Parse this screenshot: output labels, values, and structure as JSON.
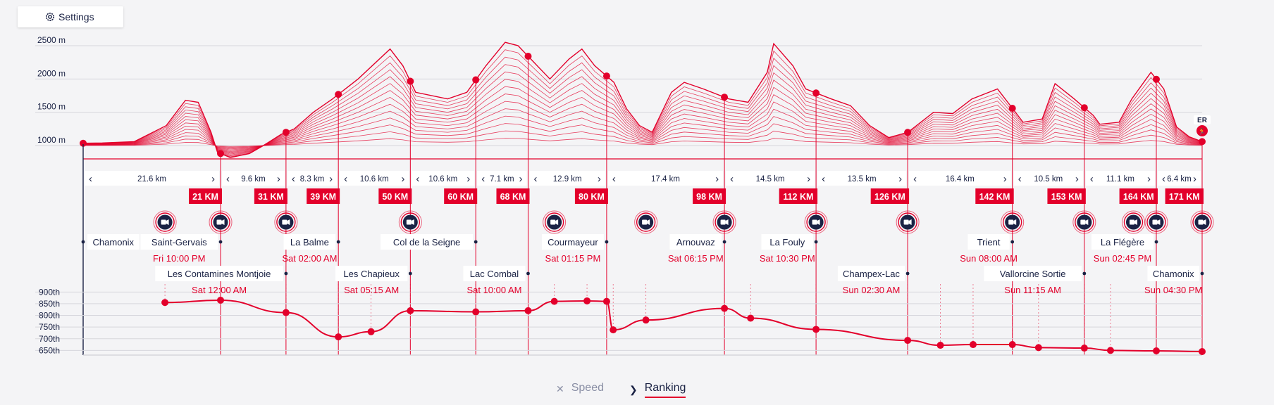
{
  "settings": {
    "label": "Settings",
    "icon": "gear-icon"
  },
  "tabs": [
    {
      "label": "Speed",
      "icon": "close-icon",
      "active": false
    },
    {
      "label": "Ranking",
      "icon": "chevron-right-icon",
      "active": true
    }
  ],
  "colors": {
    "accent": "#e3002b",
    "navy": "#1a2244",
    "grid": "#d6d6dc",
    "timeText": "#e3002b"
  },
  "chart_data": [
    {
      "type": "area",
      "ylabel": "",
      "yticks": [
        "1000 m",
        "1500 m",
        "2000 m",
        "2500 m"
      ],
      "ylim": [
        800,
        2700
      ],
      "x_km_range": [
        0,
        171
      ],
      "elevation_profile": [
        [
          0,
          1035
        ],
        [
          3,
          1040
        ],
        [
          8,
          1060
        ],
        [
          13,
          1300
        ],
        [
          16,
          1680
        ],
        [
          18,
          1650
        ],
        [
          20,
          1200
        ],
        [
          21,
          900
        ],
        [
          23,
          820
        ],
        [
          26,
          880
        ],
        [
          28,
          990
        ],
        [
          31,
          1170
        ],
        [
          33,
          1250
        ],
        [
          36,
          1500
        ],
        [
          39,
          1700
        ],
        [
          43,
          2000
        ],
        [
          48,
          2450
        ],
        [
          50,
          2200
        ],
        [
          52,
          1800
        ],
        [
          57,
          1700
        ],
        [
          60,
          1800
        ],
        [
          63,
          2200
        ],
        [
          66,
          2550
        ],
        [
          68,
          2500
        ],
        [
          70,
          2300
        ],
        [
          73,
          2000
        ],
        [
          76,
          2300
        ],
        [
          78,
          2450
        ],
        [
          80,
          2200
        ],
        [
          83,
          1950
        ],
        [
          85,
          1550
        ],
        [
          87,
          1300
        ],
        [
          89,
          1200
        ],
        [
          92,
          1800
        ],
        [
          94,
          1950
        ],
        [
          97,
          1850
        ],
        [
          101,
          1700
        ],
        [
          104,
          1650
        ],
        [
          107,
          2100
        ],
        [
          108,
          2530
        ],
        [
          111,
          2200
        ],
        [
          113,
          1850
        ],
        [
          117,
          1700
        ],
        [
          120,
          1600
        ],
        [
          123,
          1300
        ],
        [
          126,
          1120
        ],
        [
          129,
          1200
        ],
        [
          133,
          1500
        ],
        [
          136,
          1480
        ],
        [
          139,
          1700
        ],
        [
          143,
          1850
        ],
        [
          145,
          1600
        ],
        [
          147,
          1350
        ],
        [
          150,
          1400
        ],
        [
          152,
          1930
        ],
        [
          155,
          1700
        ],
        [
          158,
          1450
        ],
        [
          159,
          1320
        ],
        [
          162,
          1350
        ],
        [
          164,
          1700
        ],
        [
          167,
          2100
        ],
        [
          169,
          1850
        ],
        [
          171,
          1280
        ],
        [
          173,
          1130
        ],
        [
          175,
          1060
        ]
      ],
      "waypoint_markers_km": [
        0,
        21,
        31,
        39,
        50,
        60,
        68,
        80,
        98,
        112,
        126,
        142,
        153,
        164,
        171
      ]
    },
    {
      "type": "line",
      "title": "",
      "yticks": [
        "900th",
        "850th",
        "800th",
        "750th",
        "700th",
        "650th"
      ],
      "ylim": [
        630,
        910
      ],
      "ranking": [
        {
          "km": 12.5,
          "rank": 855
        },
        {
          "km": 21,
          "rank": 865
        },
        {
          "km": 31,
          "rank": 812
        },
        {
          "km": 39,
          "rank": 708
        },
        {
          "km": 44,
          "rank": 730
        },
        {
          "km": 50,
          "rank": 820
        },
        {
          "km": 60,
          "rank": 815
        },
        {
          "km": 68,
          "rank": 820
        },
        {
          "km": 72,
          "rank": 860
        },
        {
          "km": 77,
          "rank": 862
        },
        {
          "km": 80,
          "rank": 860
        },
        {
          "km": 81,
          "rank": 738
        },
        {
          "km": 86,
          "rank": 780
        },
        {
          "km": 98,
          "rank": 830
        },
        {
          "km": 102,
          "rank": 788
        },
        {
          "km": 112,
          "rank": 740
        },
        {
          "km": 126,
          "rank": 693
        },
        {
          "km": 131,
          "rank": 672
        },
        {
          "km": 136,
          "rank": 675
        },
        {
          "km": 142,
          "rank": 675
        },
        {
          "km": 146,
          "rank": 662
        },
        {
          "km": 153,
          "rank": 660
        },
        {
          "km": 157,
          "rank": 650
        },
        {
          "km": 164,
          "rank": 648
        },
        {
          "km": 171,
          "rank": 645
        }
      ]
    }
  ],
  "segments": [
    {
      "label": "21.6 km",
      "from": 0,
      "to": 21
    },
    {
      "label": "9.6 km",
      "from": 21,
      "to": 31
    },
    {
      "label": "8.3 km",
      "from": 31,
      "to": 39
    },
    {
      "label": "10.6 km",
      "from": 39,
      "to": 50
    },
    {
      "label": "10.6 km",
      "from": 50,
      "to": 60
    },
    {
      "label": "7.1 km",
      "from": 60,
      "to": 68
    },
    {
      "label": "12.9 km",
      "from": 68,
      "to": 80
    },
    {
      "label": "17.4 km",
      "from": 80,
      "to": 98
    },
    {
      "label": "14.5 km",
      "from": 98,
      "to": 112
    },
    {
      "label": "13.5 km",
      "from": 112,
      "to": 126
    },
    {
      "label": "16.4 km",
      "from": 126,
      "to": 142
    },
    {
      "label": "10.5 km",
      "from": 142,
      "to": 153
    },
    {
      "label": "11.1 km",
      "from": 153,
      "to": 164
    },
    {
      "label": "6.4 km",
      "from": 164,
      "to": 171
    }
  ],
  "km_badges": [
    {
      "label": "21 KM",
      "km": 21
    },
    {
      "label": "31 KM",
      "km": 31
    },
    {
      "label": "39 KM",
      "km": 39
    },
    {
      "label": "50 KM",
      "km": 50
    },
    {
      "label": "60 KM",
      "km": 60
    },
    {
      "label": "68 KM",
      "km": 68
    },
    {
      "label": "80 KM",
      "km": 80
    },
    {
      "label": "98 KM",
      "km": 98
    },
    {
      "label": "112 KM",
      "km": 112
    },
    {
      "label": "126 KM",
      "km": 126
    },
    {
      "label": "142 KM",
      "km": 142
    },
    {
      "label": "153 KM",
      "km": 153
    },
    {
      "label": "164 KM",
      "km": 164
    },
    {
      "label": "171 KM",
      "km": 171
    }
  ],
  "cameras_km": [
    12.5,
    21,
    31,
    50,
    72,
    86,
    98,
    112,
    126,
    142,
    153,
    160.5,
    164,
    171
  ],
  "runner_marker": {
    "label": "ER",
    "icon": "runner-icon"
  },
  "checkpoints": [
    {
      "name": "Chamonix",
      "time": "",
      "km": 0,
      "row": 0,
      "align": "right"
    },
    {
      "name": "Saint-Gervais",
      "time": "Fri 10:00 PM",
      "km": 21,
      "row": 0,
      "align": "left"
    },
    {
      "name": "Les Contamines Montjoie",
      "time": "Sat 12:00 AM",
      "km": 31,
      "row": 1,
      "align": "left"
    },
    {
      "name": "La Balme",
      "time": "Sat 02:00 AM",
      "km": 39,
      "row": 0,
      "align": "left"
    },
    {
      "name": "Les Chapieux",
      "time": "Sat 05:15 AM",
      "km": 50,
      "row": 1,
      "align": "left"
    },
    {
      "name": "Col de la Seigne",
      "time": "",
      "km": 60,
      "row": 0,
      "align": "left"
    },
    {
      "name": "Lac Combal",
      "time": "Sat 10:00 AM",
      "km": 68,
      "row": 1,
      "align": "left"
    },
    {
      "name": "Courmayeur",
      "time": "Sat 01:15 PM",
      "km": 80,
      "row": 0,
      "align": "left"
    },
    {
      "name": "Arnouvaz",
      "time": "Sat 06:15 PM",
      "km": 98,
      "row": 0,
      "align": "left"
    },
    {
      "name": "La Fouly",
      "time": "Sat 10:30 PM",
      "km": 112,
      "row": 0,
      "align": "left"
    },
    {
      "name": "Champex-Lac",
      "time": "Sun 02:30 AM",
      "km": 126,
      "row": 1,
      "align": "left"
    },
    {
      "name": "Trient",
      "time": "Sun 08:00 AM",
      "km": 142,
      "row": 0,
      "align": "left"
    },
    {
      "name": "Vallorcine Sortie",
      "time": "Sun 11:15 AM",
      "km": 153,
      "row": 1,
      "align": "left"
    },
    {
      "name": "La Flégère",
      "time": "Sun 02:45 PM",
      "km": 164,
      "row": 0,
      "align": "left"
    },
    {
      "name": "Chamonix",
      "time": "Sun 04:30 PM",
      "km": 171,
      "row": 1,
      "align": "left"
    }
  ]
}
